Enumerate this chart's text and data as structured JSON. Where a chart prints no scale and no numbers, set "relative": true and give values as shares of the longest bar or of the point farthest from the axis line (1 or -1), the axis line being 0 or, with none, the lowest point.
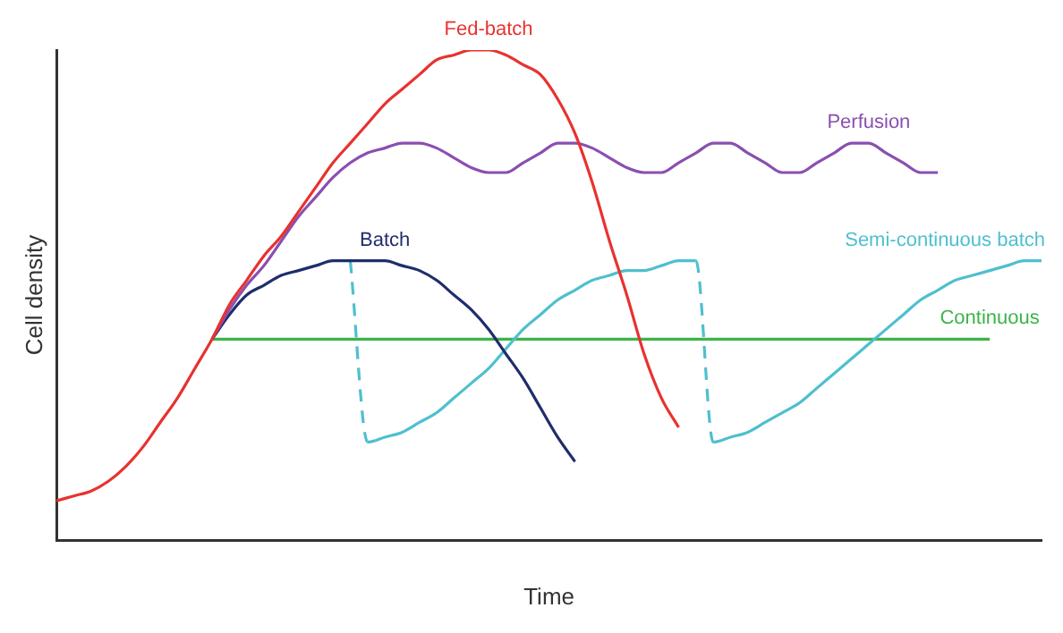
{
  "chart_data": {
    "type": "line",
    "relative": true,
    "xlabel": "Time",
    "ylabel": "Cell density",
    "legend": false,
    "grid": false,
    "marker": "none",
    "categories": [
      null,
      null,
      null,
      null,
      null,
      null,
      null,
      null,
      null,
      null,
      null,
      null,
      null,
      null,
      null,
      null,
      null,
      null,
      null,
      null,
      null,
      null,
      null,
      null,
      null,
      null,
      null,
      null,
      null,
      null,
      null,
      null,
      null,
      null,
      null,
      null,
      null,
      null,
      null,
      null,
      null,
      null,
      null,
      null,
      null,
      null,
      null,
      null,
      null,
      null,
      null,
      null,
      null,
      null,
      null,
      null,
      null,
      null
    ],
    "series": [
      {
        "name": "Fed-batch",
        "color": "#e8322f",
        "values": [
          0.08,
          0.09,
          0.1,
          0.12,
          0.15,
          0.19,
          0.24,
          0.29,
          0.35,
          0.41,
          0.48,
          0.53,
          0.58,
          0.62,
          0.67,
          0.72,
          0.77,
          0.81,
          0.85,
          0.89,
          0.92,
          0.95,
          0.98,
          0.99,
          1.0,
          1.0,
          0.99,
          0.97,
          0.95,
          0.9,
          0.83,
          0.73,
          0.61,
          0.5,
          0.38,
          0.29,
          0.23,
          null,
          null,
          null,
          null,
          null,
          null,
          null,
          null,
          null,
          null,
          null,
          null,
          null,
          null,
          null,
          null,
          null,
          null,
          null,
          null,
          null
        ]
      },
      {
        "name": "Perfusion",
        "color": "#8a4fb0",
        "values": [
          null,
          null,
          null,
          null,
          null,
          null,
          null,
          null,
          null,
          0.41,
          0.47,
          0.52,
          0.56,
          0.61,
          0.66,
          0.7,
          0.74,
          0.77,
          0.79,
          0.8,
          0.81,
          0.81,
          0.8,
          0.78,
          0.76,
          0.75,
          0.75,
          0.77,
          0.79,
          0.81,
          0.81,
          0.8,
          0.78,
          0.76,
          0.75,
          0.75,
          0.77,
          0.79,
          0.81,
          0.81,
          0.79,
          0.77,
          0.75,
          0.75,
          0.77,
          0.79,
          0.81,
          0.81,
          0.79,
          0.77,
          0.75,
          0.75,
          null,
          null,
          null,
          null,
          null,
          null
        ]
      },
      {
        "name": "Batch",
        "color": "#1f2d6b",
        "values": [
          null,
          null,
          null,
          null,
          null,
          null,
          null,
          null,
          null,
          0.41,
          0.46,
          0.5,
          0.52,
          0.54,
          0.55,
          0.56,
          0.57,
          0.57,
          0.57,
          0.57,
          0.56,
          0.55,
          0.53,
          0.5,
          0.47,
          0.43,
          0.38,
          0.33,
          0.27,
          0.21,
          0.16,
          null,
          null,
          null,
          null,
          null,
          null,
          null,
          null,
          null,
          null,
          null,
          null,
          null,
          null,
          null,
          null,
          null,
          null,
          null,
          null,
          null,
          null,
          null,
          null,
          null,
          null,
          null
        ]
      },
      {
        "name": "Semi-continuous batch",
        "color": "#4fbfcf",
        "values": [
          null,
          null,
          null,
          null,
          null,
          null,
          null,
          null,
          null,
          null,
          null,
          null,
          null,
          null,
          null,
          null,
          null,
          0.57,
          0.2,
          0.21,
          0.22,
          0.24,
          0.26,
          0.29,
          0.32,
          0.35,
          0.39,
          0.43,
          0.46,
          0.49,
          0.51,
          0.53,
          0.54,
          0.55,
          0.55,
          0.56,
          0.57,
          0.57,
          0.2,
          0.21,
          0.22,
          0.24,
          0.26,
          0.28,
          0.31,
          0.34,
          0.37,
          0.4,
          0.43,
          0.46,
          0.49,
          0.51,
          0.53,
          0.54,
          0.55,
          0.56,
          0.57,
          0.57
        ]
      },
      {
        "name": "Continuous",
        "color": "#3cb34a",
        "values": [
          null,
          null,
          null,
          null,
          null,
          null,
          null,
          null,
          null,
          0.41,
          0.41,
          0.41,
          0.41,
          0.41,
          0.41,
          0.41,
          0.41,
          0.41,
          0.41,
          0.41,
          0.41,
          0.41,
          0.41,
          0.41,
          0.41,
          0.41,
          0.41,
          0.41,
          0.41,
          0.41,
          0.41,
          0.41,
          0.41,
          0.41,
          0.41,
          0.41,
          0.41,
          0.41,
          0.41,
          0.41,
          0.41,
          0.41,
          0.41,
          0.41,
          0.41,
          0.41,
          0.41,
          0.41,
          0.41,
          0.41,
          0.41,
          0.41,
          0.41,
          0.41,
          0.41,
          null,
          null,
          null
        ]
      }
    ]
  }
}
